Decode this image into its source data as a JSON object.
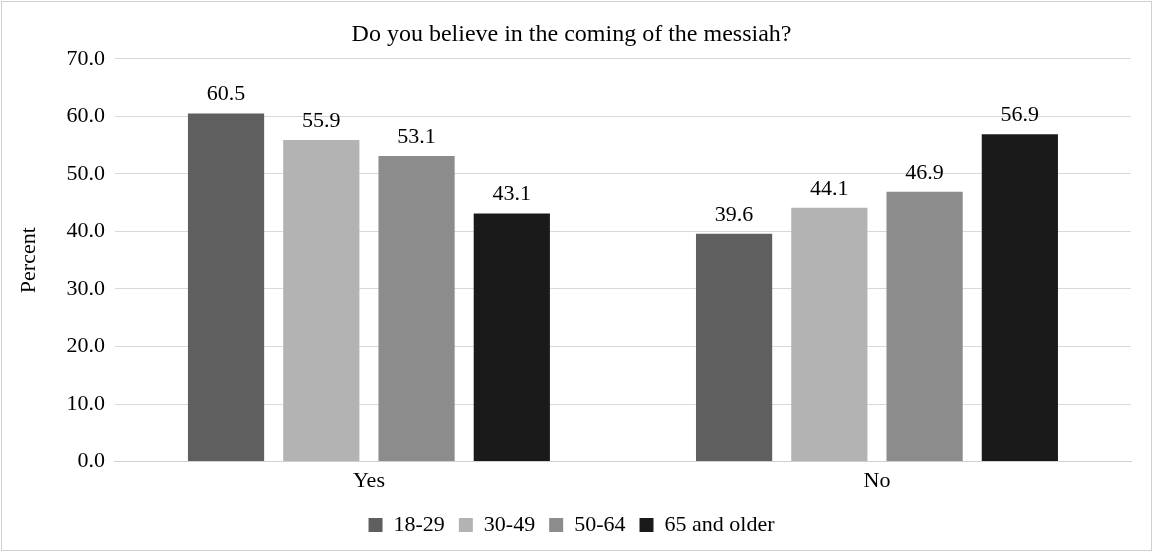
{
  "chart_data": {
    "type": "bar",
    "title": "Do you believe in the coming of the messiah?",
    "ylabel": "Percent",
    "categories": [
      "Yes",
      "No"
    ],
    "series": [
      {
        "name": "18-29",
        "color": "#5f5f5f",
        "values": [
          60.5,
          39.6
        ]
      },
      {
        "name": "30-49",
        "color": "#b3b3b3",
        "values": [
          55.9,
          44.1
        ]
      },
      {
        "name": "50-64",
        "color": "#8c8c8c",
        "values": [
          53.1,
          46.9
        ]
      },
      {
        "name": "65 and older",
        "color": "#1a1a1a",
        "values": [
          43.1,
          56.9
        ]
      }
    ],
    "ylim": [
      0,
      70
    ],
    "yticks": [
      {
        "value": 0,
        "label": "0.0"
      },
      {
        "value": 10,
        "label": "10.0"
      },
      {
        "value": 20,
        "label": "20.0"
      },
      {
        "value": 30,
        "label": "30.0"
      },
      {
        "value": 40,
        "label": "40.0"
      },
      {
        "value": 50,
        "label": "50.0"
      },
      {
        "value": 60,
        "label": "60.0"
      },
      {
        "value": 70,
        "label": "70.0"
      }
    ],
    "grid": "y",
    "legend": "bottom",
    "data_labels": true
  }
}
